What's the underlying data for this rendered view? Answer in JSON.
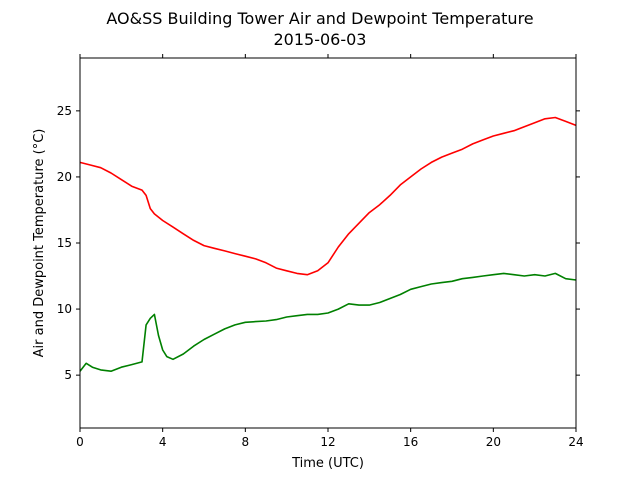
{
  "chart_data": {
    "type": "line",
    "title": "AO&SS Building Tower Air and Dewpoint Temperature",
    "subtitle": "2015-06-03",
    "xlabel": "Time (UTC)",
    "ylabel": "Air and Dewpoint Temperature (°C)",
    "xlim": [
      0,
      24
    ],
    "ylim": [
      1,
      29
    ],
    "xticks": [
      0,
      4,
      8,
      12,
      16,
      20,
      24
    ],
    "yticks": [
      5,
      10,
      15,
      20,
      25
    ],
    "grid": false,
    "legend": "none",
    "series": [
      {
        "color": "#ff0000",
        "x": [
          0,
          0.5,
          1,
          1.5,
          2,
          2.5,
          3,
          3.2,
          3.4,
          3.6,
          4,
          4.5,
          5,
          5.5,
          6,
          6.5,
          7,
          7.5,
          8,
          8.5,
          9,
          9.5,
          10,
          10.5,
          11,
          11.5,
          12,
          12.5,
          13,
          13.5,
          14,
          14.5,
          15,
          15.5,
          16,
          16.5,
          17,
          17.5,
          18,
          18.5,
          19,
          19.5,
          20,
          20.5,
          21,
          21.5,
          22,
          22.5,
          23,
          23.5,
          24
        ],
        "y": [
          21.1,
          20.9,
          20.7,
          20.3,
          19.8,
          19.3,
          19.0,
          18.6,
          17.6,
          17.2,
          16.7,
          16.2,
          15.7,
          15.2,
          14.8,
          14.6,
          14.4,
          14.2,
          14.0,
          13.8,
          13.5,
          13.1,
          12.9,
          12.7,
          12.6,
          12.9,
          13.5,
          14.7,
          15.7,
          16.5,
          17.3,
          17.9,
          18.6,
          19.4,
          20.0,
          20.6,
          21.1,
          21.5,
          21.8,
          22.1,
          22.5,
          22.8,
          23.1,
          23.3,
          23.5,
          23.8,
          24.1,
          24.4,
          24.5,
          24.2,
          23.9
        ]
      },
      {
        "color": "#008000",
        "x": [
          0,
          0.3,
          0.6,
          1,
          1.5,
          2,
          2.5,
          3,
          3.2,
          3.4,
          3.6,
          3.8,
          4,
          4.2,
          4.5,
          5,
          5.5,
          6,
          6.5,
          7,
          7.5,
          8,
          8.5,
          9,
          9.5,
          10,
          10.5,
          11,
          11.5,
          12,
          12.5,
          13,
          13.5,
          14,
          14.5,
          15,
          15.5,
          16,
          16.5,
          17,
          17.5,
          18,
          18.5,
          19,
          19.5,
          20,
          20.5,
          21,
          21.5,
          22,
          22.5,
          23,
          23.5,
          24
        ],
        "y": [
          5.3,
          5.9,
          5.6,
          5.4,
          5.3,
          5.6,
          5.8,
          6.0,
          8.8,
          9.3,
          9.6,
          8.0,
          6.9,
          6.4,
          6.2,
          6.6,
          7.2,
          7.7,
          8.1,
          8.5,
          8.8,
          9.0,
          9.05,
          9.1,
          9.2,
          9.4,
          9.5,
          9.6,
          9.6,
          9.7,
          10.0,
          10.4,
          10.3,
          10.3,
          10.5,
          10.8,
          11.1,
          11.5,
          11.7,
          11.9,
          12.0,
          12.1,
          12.3,
          12.4,
          12.5,
          12.6,
          12.7,
          12.6,
          12.5,
          12.6,
          12.5,
          12.7,
          12.3,
          12.2
        ]
      }
    ]
  }
}
